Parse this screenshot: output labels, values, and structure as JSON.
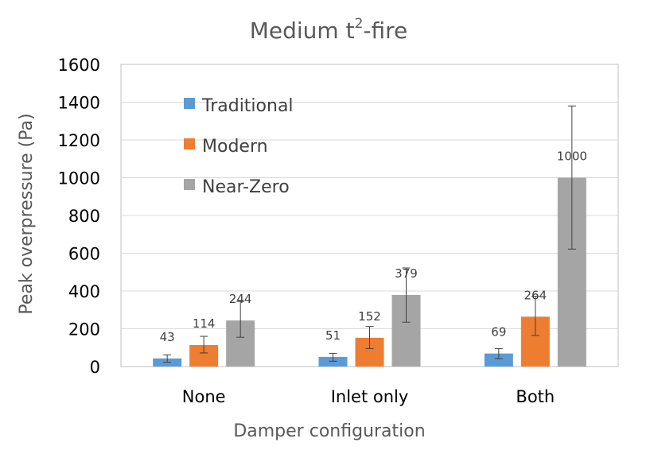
{
  "chart_data": {
    "type": "bar",
    "title_main": "Medium t",
    "title_sup": "2",
    "title_rest": "-fire",
    "xlabel": "Damper configuration",
    "ylabel": "Peak overpressure (Pa)",
    "categories": [
      "None",
      "Inlet only",
      "Both"
    ],
    "ylim": [
      0,
      1600
    ],
    "yticks": [
      "0",
      "200",
      "400",
      "600",
      "800",
      "1000",
      "1200",
      "1400",
      "1600"
    ],
    "grid": true,
    "legend_position": "top-left",
    "series": [
      {
        "name": "Traditional",
        "color": "#5b9bd5",
        "values": [
          43,
          51,
          69
        ],
        "labels": [
          "43",
          "51",
          "69"
        ],
        "err_low": [
          23,
          28,
          42
        ],
        "err_high": [
          62,
          70,
          95
        ]
      },
      {
        "name": "Modern",
        "color": "#ed7d31",
        "values": [
          114,
          152,
          264
        ],
        "labels": [
          "114",
          "152",
          "264"
        ],
        "err_low": [
          72,
          95,
          165
        ],
        "err_high": [
          160,
          212,
          372
        ]
      },
      {
        "name": "Near-Zero",
        "color": "#a5a5a5",
        "values": [
          244,
          379,
          1000
        ],
        "labels": [
          "244",
          "379",
          "1000"
        ],
        "err_low": [
          155,
          235,
          622
        ],
        "err_high": [
          345,
          522,
          1380
        ]
      }
    ]
  }
}
